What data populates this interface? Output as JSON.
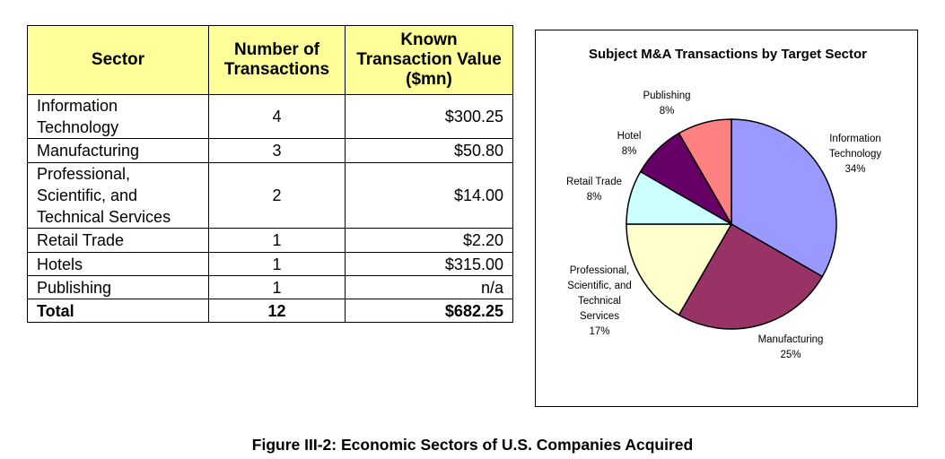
{
  "table": {
    "headers": {
      "sector": "Sector",
      "count": "Number of Transactions",
      "value": "Known Transaction Value ($mn)"
    },
    "rows": [
      {
        "sector": "Information Technology",
        "count": "4",
        "value": "$300.25"
      },
      {
        "sector": "Manufacturing",
        "count": "3",
        "value": "$50.80"
      },
      {
        "sector": "Professional, Scientific, and Technical Services",
        "count": "2",
        "value": "$14.00"
      },
      {
        "sector": "Retail Trade",
        "count": "1",
        "value": "$2.20"
      },
      {
        "sector": "Hotels",
        "count": "1",
        "value": "$315.00"
      },
      {
        "sector": "Publishing",
        "count": "1",
        "value": "n/a"
      }
    ],
    "total": {
      "sector": "Total",
      "count": "12",
      "value": "$682.25"
    },
    "header_color": "#ffff99"
  },
  "chart_data": {
    "type": "pie",
    "title": "Subject M&A Transactions by Target Sector",
    "slices": [
      {
        "label": [
          "Information",
          "Technology"
        ],
        "percent_label": "34%",
        "value": 4,
        "color": "#9999ff"
      },
      {
        "label": [
          "Manufacturing"
        ],
        "percent_label": "25%",
        "value": 3,
        "color": "#993366"
      },
      {
        "label": [
          "Professional,",
          "Scientific, and",
          "Technical",
          "Services"
        ],
        "percent_label": "17%",
        "value": 2,
        "color": "#ffffcc"
      },
      {
        "label": [
          "Retail Trade"
        ],
        "percent_label": "8%",
        "value": 1,
        "color": "#ccffff"
      },
      {
        "label": [
          "Hotel"
        ],
        "percent_label": "8%",
        "value": 1,
        "color": "#660066"
      },
      {
        "label": [
          "Publishing"
        ],
        "percent_label": "8%",
        "value": 1,
        "color": "#ff8080"
      }
    ],
    "start_angle": "12 o'clock",
    "direction": "clockwise",
    "legend": "none"
  },
  "caption": "Figure III-2: Economic Sectors of U.S. Companies Acquired"
}
